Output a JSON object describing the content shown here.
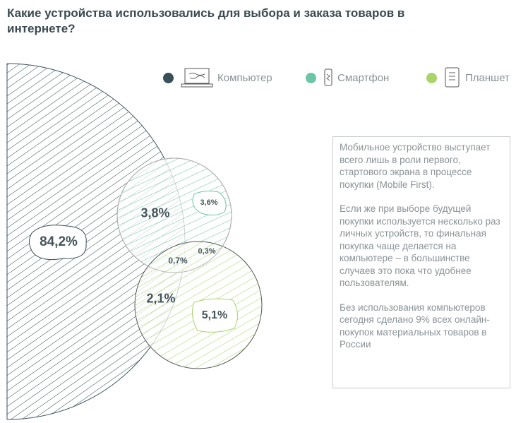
{
  "title": "Какие устройства использовались для выбора и заказа товаров в интернете?",
  "legend": [
    {
      "label": "Компьютер",
      "color": "#3a5058",
      "icon": "laptop-icon"
    },
    {
      "label": "Смартфон",
      "color": "#6cc5a8",
      "icon": "smartphone-icon"
    },
    {
      "label": "Планшет",
      "color": "#a8d46a",
      "icon": "tablet-icon"
    }
  ],
  "venn": {
    "computer_only": "84,2%",
    "computer_smartphone": "3,8%",
    "smartphone_only": "3,6%",
    "all_three": "0,7%",
    "smartphone_tablet": "0,3%",
    "computer_tablet": "2,1%",
    "tablet_only": "5,1%"
  },
  "note": {
    "p1": "Мобильное устройство выступает всего лишь в роли первого, стартового экрана в процессе покупки (Mobile First).",
    "p2": "Если же при выборе будущей покупки используется несколько раз личных устройств, то финальная покупка чаще делается на компьютере – в большинстве случаев это пока что удобнее пользователям.",
    "p3": "Без использования компьютеров сегодня сделано 9% всех онлайн-покупок материальных товаров в России"
  }
}
